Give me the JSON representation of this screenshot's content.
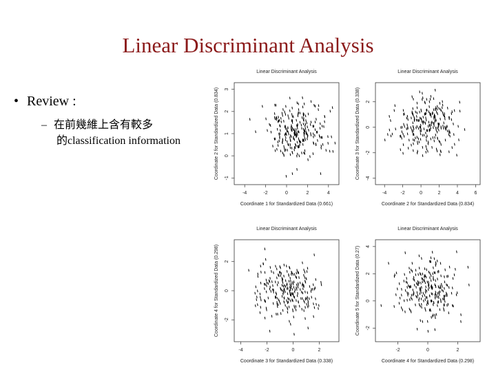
{
  "slide": {
    "title": "Linear Discriminant Analysis",
    "bullet": "Review :",
    "bullet_marker": "•",
    "sub_marker": "–",
    "sub_line1": "在前幾維上含有較多",
    "sub_line2": "的classification information"
  },
  "colors": {
    "title": "#8b1a1a",
    "points": "#000000",
    "axes": "#333333"
  },
  "chart_data": [
    {
      "type": "scatter",
      "title": "Linear Discriminant Analysis",
      "xlabel": "Coordinate 1 for Standardized Data (0.661)",
      "ylabel": "Coordinate 2 for Standardized Data (0.834)",
      "xticks": [
        "-4",
        "-2",
        "0",
        "2",
        "4"
      ],
      "yticks": [
        "-1",
        "0",
        "1",
        "2",
        "3"
      ],
      "xlim": [
        -5,
        5
      ],
      "ylim": [
        -1.3,
        3.3
      ],
      "grid": false
    },
    {
      "type": "scatter",
      "title": "Linear Discriminant Analysis",
      "xlabel": "Coordinate 2 for Standardized Data (0.834)",
      "ylabel": "Coordinate 3 for Standardized Data (0.338)",
      "xticks": [
        "-4",
        "-2",
        "0",
        "2",
        "4",
        "6"
      ],
      "yticks": [
        "-4",
        "-2",
        "0",
        "2"
      ],
      "xlim": [
        -5,
        6.5
      ],
      "ylim": [
        -4.5,
        3.5
      ],
      "grid": false
    },
    {
      "type": "scatter",
      "title": "Linear Discriminant Analysis",
      "xlabel": "Coordinate 3 for Standardized Data (0.338)",
      "ylabel": "Coordinate 4 for Standardized Data (0.298)",
      "xticks": [
        "-4",
        "-2",
        "0",
        "2"
      ],
      "yticks": [
        "-2",
        "0",
        "2"
      ],
      "xlim": [
        -4.5,
        3.5
      ],
      "ylim": [
        -3.5,
        3.5
      ],
      "grid": false
    },
    {
      "type": "scatter",
      "title": "Linear Discriminant Analysis",
      "xlabel": "Coordinate 4 for Standardized Data (0.298)",
      "ylabel": "Coordinate 5 for Standardized Data (0.27)",
      "xticks": [
        "-2",
        "0",
        "2"
      ],
      "yticks": [
        "-2",
        "0",
        "2",
        "4"
      ],
      "xlim": [
        -3.5,
        3.5
      ],
      "ylim": [
        -3,
        4.5
      ],
      "grid": false
    }
  ]
}
